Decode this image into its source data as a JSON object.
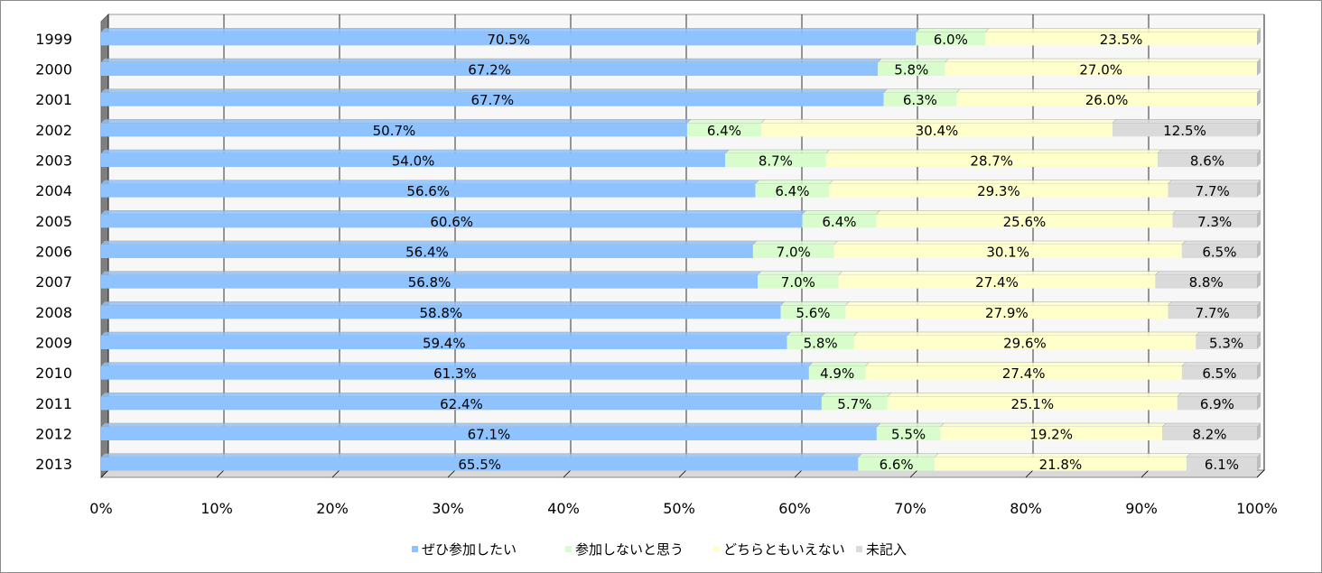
{
  "chart_data": {
    "type": "bar",
    "orientation": "horizontal",
    "stacked": "percent",
    "categories": [
      "1999",
      "2000",
      "2001",
      "2002",
      "2003",
      "2004",
      "2005",
      "2006",
      "2007",
      "2008",
      "2009",
      "2010",
      "2011",
      "2012",
      "2013"
    ],
    "series": [
      {
        "name": "ぜひ参加したい",
        "color": "#8EC3FF",
        "values": [
          70.5,
          67.2,
          67.7,
          50.7,
          54.0,
          56.6,
          60.6,
          56.4,
          56.8,
          58.8,
          59.4,
          61.3,
          62.4,
          67.1,
          65.5
        ],
        "labels": [
          "70.5%",
          "67.2%",
          "67.7%",
          "50.7%",
          "54.0%",
          "56.6%",
          "60.6%",
          "56.4%",
          "56.8%",
          "58.8%",
          "59.4%",
          "61.3%",
          "62.4%",
          "67.1%",
          "65.5%"
        ]
      },
      {
        "name": "参加しないと思う",
        "color": "#D8FCCC",
        "values": [
          6.0,
          5.8,
          6.3,
          6.4,
          8.7,
          6.4,
          6.4,
          7.0,
          7.0,
          5.6,
          5.8,
          4.9,
          5.7,
          5.5,
          6.6
        ],
        "labels": [
          "6.0%",
          "5.8%",
          "6.3%",
          "6.4%",
          "8.7%",
          "6.4%",
          "6.4%",
          "7.0%",
          "7.0%",
          "5.6%",
          "5.8%",
          "4.9%",
          "5.7%",
          "5.5%",
          "6.6%"
        ]
      },
      {
        "name": "どちらともいえない",
        "color": "#FFFFCC",
        "values": [
          23.5,
          27.0,
          26.0,
          30.4,
          28.7,
          29.3,
          25.6,
          30.1,
          27.4,
          27.9,
          29.6,
          27.4,
          25.1,
          19.2,
          21.8
        ],
        "labels": [
          "23.5%",
          "27.0%",
          "26.0%",
          "30.4%",
          "28.7%",
          "29.3%",
          "25.6%",
          "30.1%",
          "27.4%",
          "27.9%",
          "29.6%",
          "27.4%",
          "25.1%",
          "19.2%",
          "21.8%"
        ]
      },
      {
        "name": "未記入",
        "color": "#DADADA",
        "values": [
          0,
          0,
          0,
          12.5,
          8.6,
          7.7,
          7.3,
          6.5,
          8.8,
          7.7,
          5.3,
          6.5,
          6.9,
          8.2,
          6.1
        ],
        "labels": [
          "",
          "",
          "",
          "12.5%",
          "8.6%",
          "7.7%",
          "7.3%",
          "6.5%",
          "8.8%",
          "7.7%",
          "5.3%",
          "6.5%",
          "6.9%",
          "8.2%",
          "6.1%"
        ]
      }
    ],
    "x_ticks": [
      "0%",
      "10%",
      "20%",
      "30%",
      "40%",
      "50%",
      "60%",
      "70%",
      "80%",
      "90%",
      "100%"
    ],
    "xlim": [
      0,
      100
    ],
    "grid": true,
    "legend": "bottom"
  }
}
